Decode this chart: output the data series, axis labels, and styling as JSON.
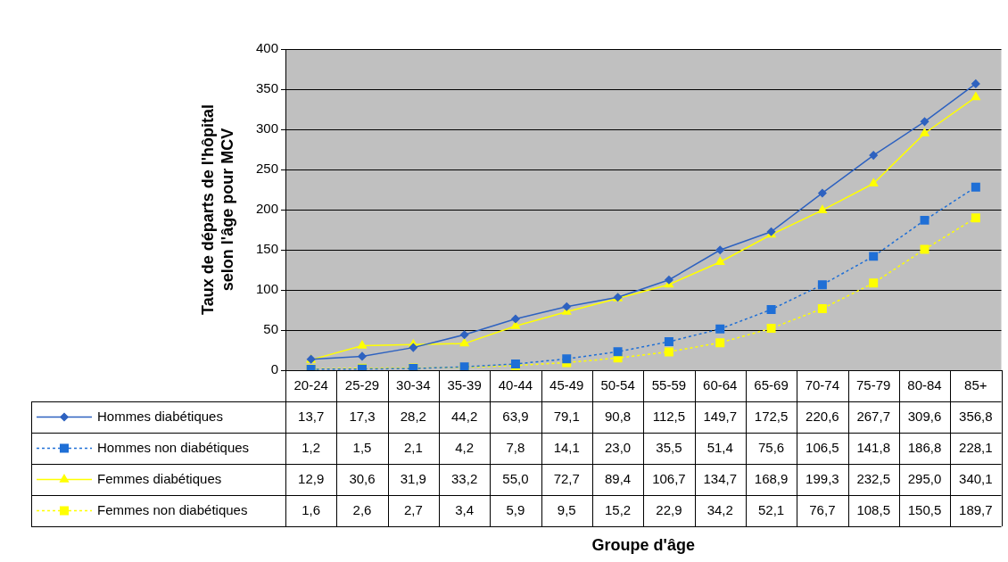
{
  "chart_data": {
    "type": "line",
    "annotations": [
      "Groupe d'âge"
    ],
    "ylabel": "Taux de départs de l'hôpital selon l'âge pour MCV",
    "categories": [
      "20-24",
      "25-29",
      "30-34",
      "35-39",
      "40-44",
      "45-49",
      "50-54",
      "55-59",
      "60-64",
      "65-69",
      "70-74",
      "75-79",
      "80-84",
      "85+"
    ],
    "ylim": [
      0,
      400
    ],
    "yticks": [
      0,
      50,
      100,
      150,
      200,
      250,
      300,
      350,
      400
    ],
    "grid": "y",
    "legend": "bottom",
    "series": [
      {
        "name": "Hommes diabétiques",
        "color": "#2e62c0",
        "marker": "diamond",
        "line_style": "solid",
        "values": [
          13.7,
          17.3,
          28.2,
          44.2,
          63.9,
          79.1,
          90.8,
          112.5,
          149.7,
          172.5,
          220.6,
          267.7,
          309.6,
          356.8
        ],
        "value_labels": [
          "13,7",
          "17,3",
          "28,2",
          "44,2",
          "63,9",
          "79,1",
          "90,8",
          "112,5",
          "149,7",
          "172,5",
          "220,6",
          "267,7",
          "309,6",
          "356,8"
        ]
      },
      {
        "name": "Hommes non diabétiques",
        "color": "#1f6fd6",
        "marker": "square",
        "line_style": "dotted",
        "values": [
          1.2,
          1.5,
          2.1,
          4.2,
          7.8,
          14.1,
          23.0,
          35.5,
          51.4,
          75.6,
          106.5,
          141.8,
          186.8,
          228.1
        ],
        "value_labels": [
          "1,2",
          "1,5",
          "2,1",
          "4,2",
          "7,8",
          "14,1",
          "23,0",
          "35,5",
          "51,4",
          "75,6",
          "106,5",
          "141,8",
          "186,8",
          "228,1"
        ]
      },
      {
        "name": "Femmes diabétiques",
        "color": "#ffff00",
        "marker": "triangle",
        "line_style": "solid",
        "values": [
          12.9,
          30.6,
          31.9,
          33.2,
          55.0,
          72.7,
          89.4,
          106.7,
          134.7,
          168.9,
          199.3,
          232.5,
          295.0,
          340.1
        ],
        "value_labels": [
          "12,9",
          "30,6",
          "31,9",
          "33,2",
          "55,0",
          "72,7",
          "89,4",
          "106,7",
          "134,7",
          "168,9",
          "199,3",
          "232,5",
          "295,0",
          "340,1"
        ]
      },
      {
        "name": "Femmes non diabétiques",
        "color": "#ffff00",
        "marker": "square",
        "line_style": "dotted",
        "values": [
          1.6,
          2.6,
          2.7,
          3.4,
          5.9,
          9.5,
          15.2,
          22.9,
          34.2,
          52.1,
          76.7,
          108.5,
          150.5,
          189.7
        ],
        "value_labels": [
          "1,6",
          "2,6",
          "2,7",
          "3,4",
          "5,9",
          "9,5",
          "15,2",
          "22,9",
          "34,2",
          "52,1",
          "76,7",
          "108,5",
          "150,5",
          "189,7"
        ]
      }
    ]
  }
}
